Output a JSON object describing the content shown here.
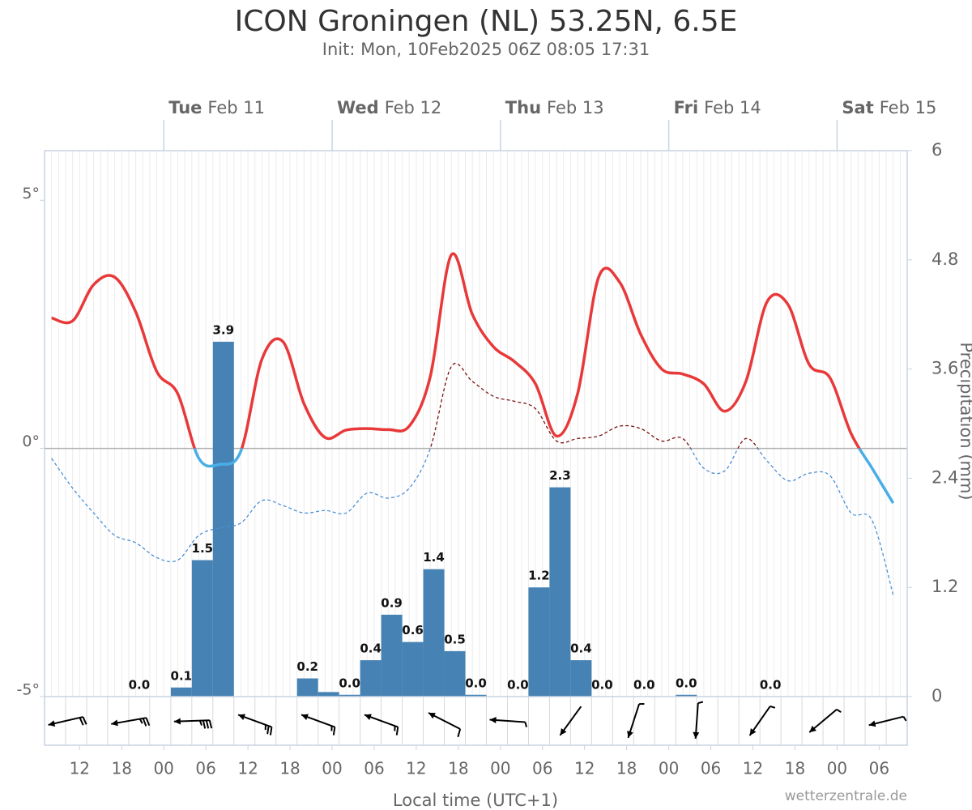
{
  "chart_data": {
    "type": "line",
    "title": "ICON Groningen (NL) 53.25N, 6.5E",
    "subtitle": "Init: Mon, 10Feb2025 06Z 08:05 17:31",
    "x_label": "Local time (UTC+1)",
    "y2_label": "Precipitation (mm)",
    "source": "wetterzentrale.de",
    "xlim": [
      7,
      130
    ],
    "xticks": [
      {
        "value": 12,
        "label": "12"
      },
      {
        "value": 18,
        "label": "18"
      },
      {
        "value": 24,
        "label": "00"
      },
      {
        "value": 30,
        "label": "06"
      },
      {
        "value": 36,
        "label": "12"
      },
      {
        "value": 42,
        "label": "18"
      },
      {
        "value": 48,
        "label": "00"
      },
      {
        "value": 54,
        "label": "06"
      },
      {
        "value": 60,
        "label": "12"
      },
      {
        "value": 66,
        "label": "18"
      },
      {
        "value": 72,
        "label": "00"
      },
      {
        "value": 78,
        "label": "06"
      },
      {
        "value": 84,
        "label": "12"
      },
      {
        "value": 90,
        "label": "18"
      },
      {
        "value": 96,
        "label": "00"
      },
      {
        "value": 102,
        "label": "06"
      },
      {
        "value": 108,
        "label": "12"
      },
      {
        "value": 114,
        "label": "18"
      },
      {
        "value": 120,
        "label": "00"
      },
      {
        "value": 126,
        "label": "06"
      }
    ],
    "day_labels": [
      {
        "value": 24,
        "weekday": "Tue",
        "date": "Feb 11"
      },
      {
        "value": 48,
        "weekday": "Wed",
        "date": "Feb 12"
      },
      {
        "value": 72,
        "weekday": "Thu",
        "date": "Feb 13"
      },
      {
        "value": 96,
        "weekday": "Fri",
        "date": "Feb 14"
      },
      {
        "value": 120,
        "weekday": "Sat",
        "date": "Feb 15"
      }
    ],
    "ylim": [
      -5,
      6
    ],
    "yticks": [
      {
        "value": -5,
        "label": "-5°"
      },
      {
        "value": 0,
        "label": "0°"
      },
      {
        "value": 5,
        "label": "5°"
      }
    ],
    "y2lim": [
      0,
      6
    ],
    "y2ticks": [
      0,
      1.2,
      2.4,
      3.6,
      4.8,
      6
    ],
    "series": [
      {
        "type": "line",
        "x": [
          8,
          11,
          14,
          17,
          20,
          23,
          26,
          29,
          32,
          35,
          38,
          41,
          44,
          47,
          50,
          53,
          56,
          59,
          62,
          65,
          68,
          71,
          74,
          77,
          80,
          83,
          86,
          89,
          92,
          95,
          98,
          101,
          104,
          107,
          110,
          113,
          116,
          119,
          122,
          125,
          128
        ],
        "values": [
          2.63,
          2.57,
          3.3,
          3.45,
          2.75,
          1.55,
          1.1,
          -0.2,
          -0.32,
          -0.05,
          1.8,
          2.15,
          0.9,
          0.22,
          0.37,
          0.4,
          0.38,
          0.45,
          1.45,
          3.9,
          2.7,
          2.05,
          1.75,
          1.3,
          0.25,
          1.1,
          3.45,
          3.35,
          2.3,
          1.6,
          1.5,
          1.3,
          0.75,
          1.35,
          2.95,
          2.9,
          1.7,
          1.42,
          0.3,
          -0.4,
          -1.1
        ],
        "color": "#e8393a",
        "color_below_zero": "#4aaee6",
        "dashed": false
      },
      {
        "type": "line",
        "x": [
          8,
          11,
          14,
          17,
          20,
          23,
          26,
          29,
          32,
          35,
          38,
          41,
          44,
          47,
          50,
          53,
          56,
          59,
          62,
          65,
          68,
          71,
          74,
          77,
          80,
          83,
          86,
          89,
          92,
          95,
          98,
          101,
          104,
          107,
          110,
          113,
          116,
          119,
          122,
          125,
          128
        ],
        "values": [
          -0.2,
          -0.8,
          -1.3,
          -1.75,
          -1.9,
          -2.2,
          -2.25,
          -1.75,
          -1.6,
          -1.5,
          -1.05,
          -1.15,
          -1.3,
          -1.25,
          -1.3,
          -0.9,
          -1.0,
          -0.8,
          0.0,
          1.65,
          1.35,
          1.05,
          0.95,
          0.8,
          0.15,
          0.2,
          0.25,
          0.45,
          0.4,
          0.15,
          0.2,
          -0.4,
          -0.45,
          0.2,
          -0.25,
          -0.65,
          -0.5,
          -0.55,
          -1.3,
          -1.45,
          -2.95
        ],
        "color": "#7a1212",
        "color_below_zero": "#4a8fd6",
        "dashed": true
      },
      {
        "type": "bar",
        "axis": "y2",
        "color": "#4682b4",
        "x": [
          20.5,
          26.5,
          29.5,
          32.5,
          44.5,
          47.5,
          50.5,
          53.5,
          56.5,
          59.5,
          62.5,
          65.5,
          68.5,
          74.5,
          77.5,
          80.5,
          83.5,
          86.5,
          92.5,
          98.5,
          110.5
        ],
        "values": [
          0,
          0.1,
          1.5,
          3.9,
          0.2,
          0.05,
          0.02,
          0.4,
          0.9,
          0.6,
          1.4,
          0.5,
          0.02,
          0,
          1.2,
          2.3,
          0.4,
          0,
          0,
          0.02,
          0
        ],
        "value_labels": [
          "0.0",
          "0.1",
          "1.5",
          "3.9",
          "0.2",
          null,
          "0.0",
          "0.4",
          "0.9",
          "0.6",
          "1.4",
          "0.5",
          "0.0",
          "0.0",
          "1.2",
          "2.3",
          "0.4",
          "0.0",
          "0.0",
          "0.0",
          "0.0"
        ]
      }
    ],
    "wind": {
      "x": [
        10,
        19,
        28,
        37,
        46,
        55,
        64,
        73,
        82,
        91,
        100,
        109,
        118,
        127
      ],
      "direction": [
        77,
        80,
        88,
        110,
        110,
        110,
        117,
        94,
        36,
        18,
        4,
        35,
        50,
        76
      ],
      "speed": [
        20,
        25,
        35,
        25,
        15,
        15,
        10,
        5,
        3,
        5,
        5,
        5,
        5,
        5
      ],
      "color": "#000000"
    }
  }
}
